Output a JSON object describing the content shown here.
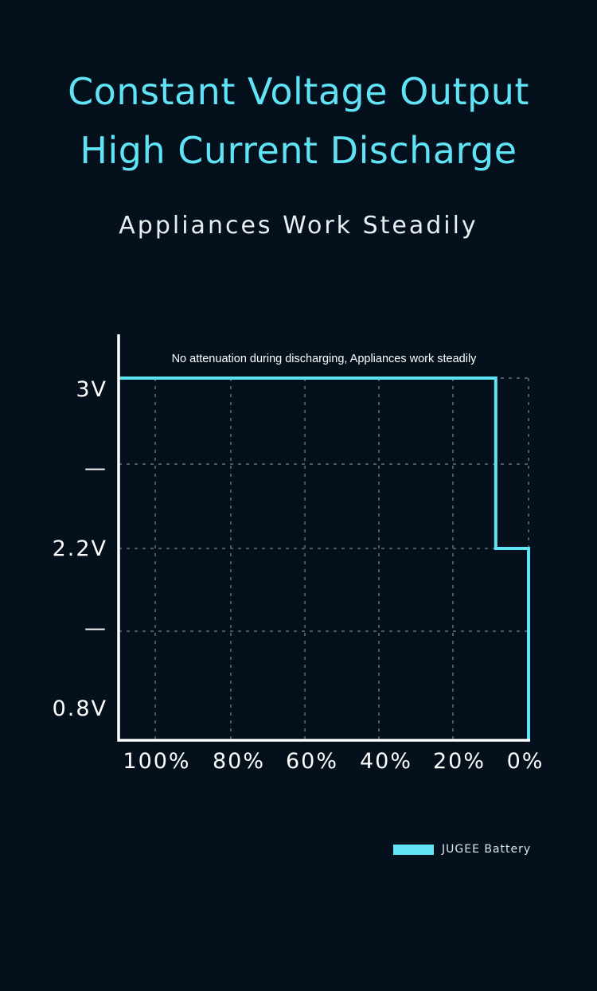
{
  "header": {
    "title_line_1": "Constant Voltage Output",
    "title_line_2": "High Current Discharge",
    "subtitle": "Appliances Work Steadily"
  },
  "colors": {
    "background": "#04111c",
    "accent": "#5fe3f5",
    "axis": "#ffffff",
    "grid": "#4b5966"
  },
  "chart_data": {
    "type": "line",
    "annotation": "No attenuation during discharging, Appliances work steadily",
    "x_tick_labels": [
      "100%",
      "80%",
      "60%",
      "40%",
      "20%",
      "0%"
    ],
    "x_ticks": [
      100,
      80,
      60,
      40,
      20,
      0
    ],
    "y_tick_labels": [
      "3V",
      "—",
      "2.2V",
      "—",
      "0.8V"
    ],
    "xlim": [
      100,
      0
    ],
    "grid": true,
    "legend_position": "bottom-right",
    "series": [
      {
        "name": "JUGEE Battery",
        "color": "#5fe3f5",
        "step": true,
        "x": [
          100,
          8,
          8,
          0,
          0
        ],
        "y": [
          3.0,
          3.0,
          2.2,
          2.2,
          0.8
        ]
      }
    ]
  }
}
